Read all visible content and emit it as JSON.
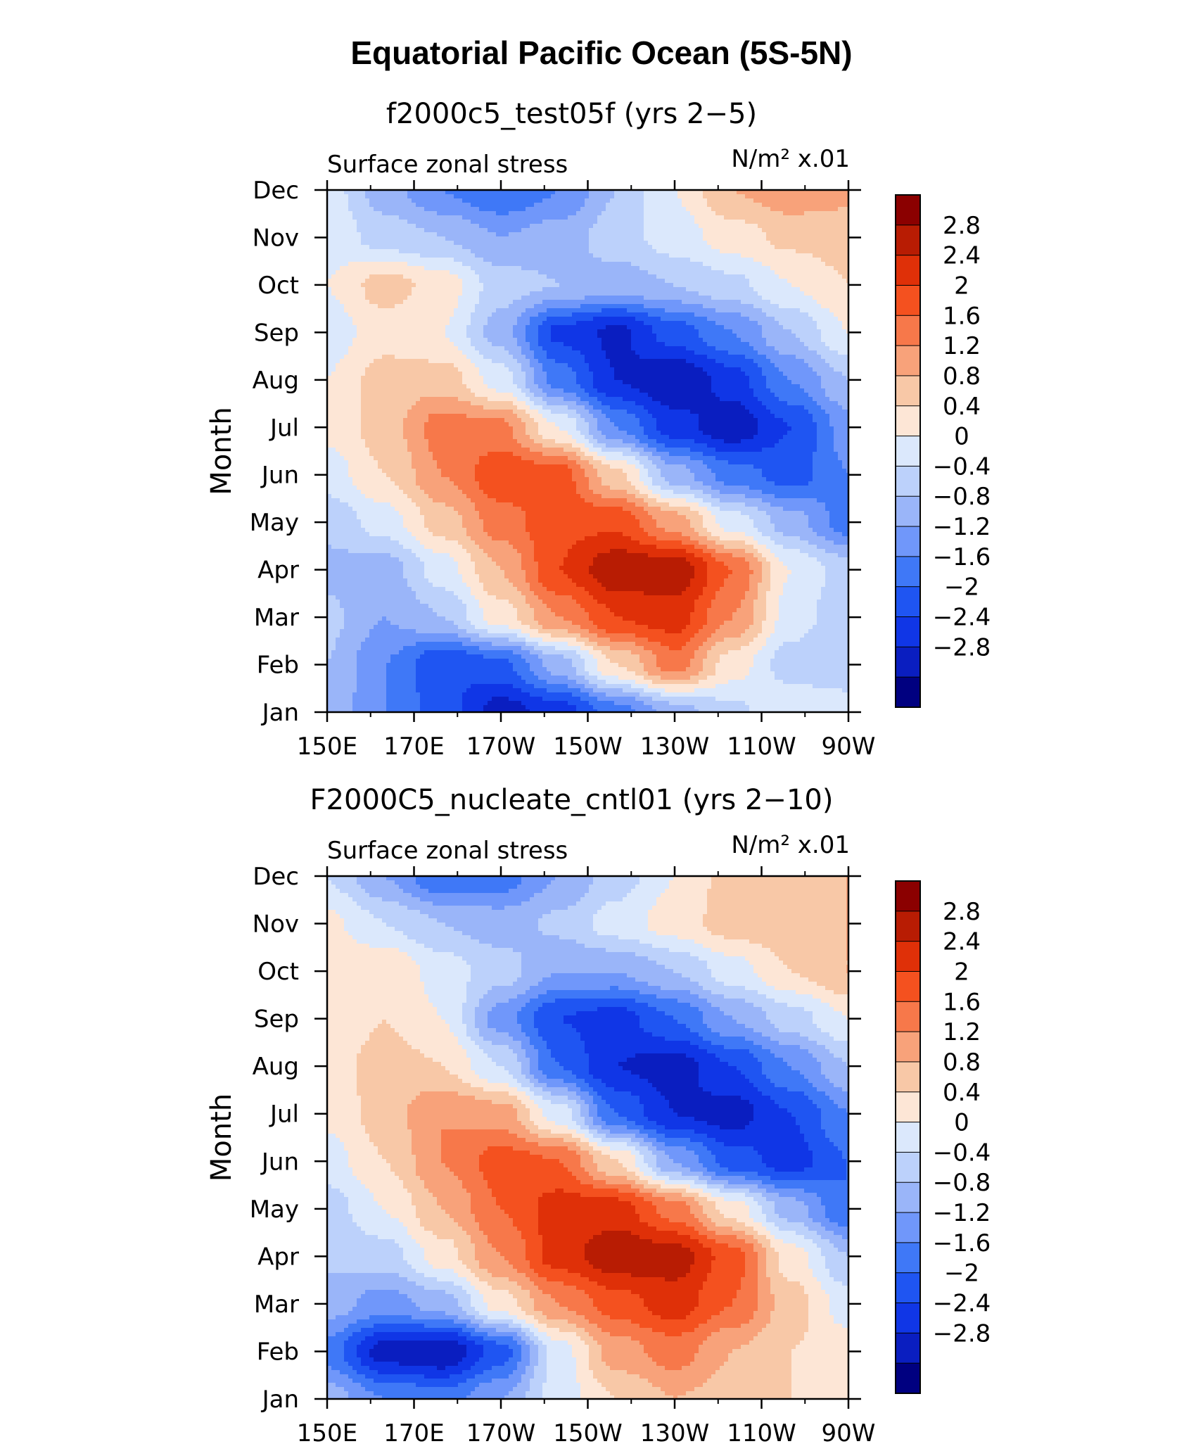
{
  "figure": {
    "title": "Equatorial Pacific Ocean (5S-5N)"
  },
  "chart_data": [
    {
      "type": "heatmap",
      "title": "f2000c5_test05f (yrs 2−5)",
      "left_string": "Surface zonal stress",
      "units": "N/m² x.01",
      "ylabel": "Month",
      "x_ticklabels": [
        "150E",
        "170E",
        "170W",
        "150W",
        "130W",
        "110W",
        "90W"
      ],
      "x_values": [
        150,
        170,
        190,
        210,
        230,
        250,
        270
      ],
      "y_ticklabels": [
        "Jan",
        "Feb",
        "Mar",
        "Apr",
        "May",
        "Jun",
        "Jul",
        "Aug",
        "Sep",
        "Oct",
        "Nov",
        "Dec"
      ],
      "xlim": [
        150,
        270
      ],
      "levels": [
        -2.8,
        -2.4,
        -2,
        -1.6,
        -1.2,
        -0.8,
        -0.4,
        0,
        0.4,
        0.8,
        1.2,
        1.6,
        2,
        2.4,
        2.8
      ],
      "colorbar_labels": [
        "2.8",
        "2.4",
        "2",
        "1.6",
        "1.2",
        "0.8",
        "0.4",
        "0",
        "−0.4",
        "−0.8",
        "−1.2",
        "−1.6",
        "−2",
        "−2.4",
        "−2.8"
      ],
      "grid": [
        [
          -0.5,
          -1.2,
          -1.8,
          -2.6,
          -2.2,
          -1.4,
          -0.6,
          -0.1,
          0.4,
          0.3
        ],
        [
          -0.4,
          -1.2,
          -2.0,
          -1.7,
          -0.6,
          0.8,
          1.8,
          0.6,
          -0.2,
          -0.4
        ],
        [
          -0.3,
          -0.8,
          -0.4,
          0.6,
          1.6,
          2.4,
          2.6,
          1.6,
          0.2,
          -0.3
        ],
        [
          -0.5,
          -0.6,
          0.2,
          1.2,
          2.4,
          3.1,
          3.1,
          2.0,
          0.4,
          -0.2
        ],
        [
          -0.3,
          0.2,
          1.0,
          1.8,
          2.3,
          2.3,
          1.4,
          0.2,
          -0.6,
          -1.4
        ],
        [
          0.2,
          0.8,
          1.6,
          2.3,
          2.2,
          0.9,
          -0.6,
          -1.4,
          -1.8,
          -1.2
        ],
        [
          0.5,
          1.0,
          1.8,
          1.7,
          0.4,
          -1.2,
          -2.2,
          -2.7,
          -2.0,
          -1.0
        ],
        [
          0.4,
          1.0,
          1.0,
          0.2,
          -1.4,
          -2.4,
          -2.8,
          -2.2,
          -1.2,
          -0.4
        ],
        [
          0.2,
          0.6,
          0.4,
          -0.6,
          -2.1,
          -2.5,
          -1.8,
          -1.2,
          -0.4,
          0.4
        ],
        [
          0.4,
          1.0,
          0.6,
          -0.2,
          -0.4,
          -0.6,
          -0.4,
          -0.1,
          0.4,
          0.8
        ],
        [
          0.3,
          -0.2,
          -0.4,
          -0.8,
          -0.6,
          -0.2,
          0.2,
          0.6,
          0.9,
          1.0
        ],
        [
          0.2,
          -0.6,
          -1.2,
          -1.6,
          -1.2,
          -0.4,
          0.4,
          1.2,
          1.5,
          1.3
        ]
      ]
    },
    {
      "type": "heatmap",
      "title": "F2000C5_nucleate_cntl01 (yrs 2−10)",
      "left_string": "Surface zonal stress",
      "units": "N/m² x.01",
      "ylabel": "Month",
      "x_ticklabels": [
        "150E",
        "170E",
        "170W",
        "150W",
        "130W",
        "110W",
        "90W"
      ],
      "x_values": [
        150,
        170,
        190,
        210,
        230,
        250,
        270
      ],
      "y_ticklabels": [
        "Jan",
        "Feb",
        "Mar",
        "Apr",
        "May",
        "Jun",
        "Jul",
        "Aug",
        "Sep",
        "Oct",
        "Nov",
        "Dec"
      ],
      "xlim": [
        150,
        270
      ],
      "levels": [
        -2.8,
        -2.4,
        -2,
        -1.6,
        -1.2,
        -0.8,
        -0.4,
        0,
        0.4,
        0.8,
        1.2,
        1.6,
        2,
        2.4,
        2.8
      ],
      "colorbar_labels": [
        "2.8",
        "2.4",
        "2",
        "1.6",
        "1.2",
        "0.8",
        "0.4",
        "0",
        "−0.4",
        "−0.8",
        "−1.2",
        "−1.6",
        "−2",
        "−2.4",
        "−2.8"
      ],
      "grid": [
        [
          -0.6,
          -1.2,
          -1.4,
          -0.8,
          0.2,
          0.8,
          1.2,
          1.0,
          0.8,
          0.6
        ],
        [
          -1.4,
          -2.6,
          -2.8,
          -1.8,
          0.2,
          1.4,
          1.8,
          1.2,
          0.8,
          0.6
        ],
        [
          -0.6,
          -1.0,
          -0.6,
          0.6,
          1.6,
          2.2,
          2.6,
          2.0,
          1.0,
          0.2
        ],
        [
          -0.3,
          -0.2,
          0.6,
          1.6,
          2.6,
          3.1,
          3.0,
          2.2,
          0.6,
          -0.4
        ],
        [
          -0.2,
          0.4,
          1.2,
          2.0,
          2.6,
          2.6,
          1.8,
          0.6,
          -0.6,
          -1.6
        ],
        [
          0.2,
          0.8,
          1.6,
          2.2,
          2.0,
          0.8,
          -0.8,
          -1.8,
          -2.2,
          -1.6
        ],
        [
          0.5,
          1.0,
          1.6,
          1.4,
          0.2,
          -1.6,
          -2.4,
          -2.6,
          -2.0,
          -1.2
        ],
        [
          0.6,
          1.0,
          0.8,
          0.0,
          -1.6,
          -2.4,
          -2.6,
          -2.0,
          -1.2,
          -0.4
        ],
        [
          0.5,
          0.8,
          0.4,
          -1.0,
          -2.0,
          -2.2,
          -1.6,
          -0.8,
          -0.2,
          0.4
        ],
        [
          0.7,
          0.8,
          0.2,
          -0.2,
          -0.8,
          -0.8,
          -0.4,
          0.2,
          0.8,
          1.2
        ],
        [
          0.5,
          0.0,
          -0.4,
          -0.6,
          -0.3,
          0.2,
          0.6,
          1.0,
          1.1,
          1.2
        ],
        [
          0.0,
          -0.8,
          -1.6,
          -1.4,
          -0.8,
          -0.2,
          0.4,
          1.0,
          1.2,
          1.2
        ]
      ]
    }
  ],
  "colors": {
    "palette": [
      "#000080",
      "#0a1ec0",
      "#1036e6",
      "#1f55f2",
      "#3f78f7",
      "#7097fa",
      "#9ab5f9",
      "#bcd1fb",
      "#dbe8fc",
      "#fde6d6",
      "#f8c8a7",
      "#f8a27a",
      "#f7784a",
      "#f4511f",
      "#df3008",
      "#b81c03",
      "#8b0000"
    ]
  }
}
